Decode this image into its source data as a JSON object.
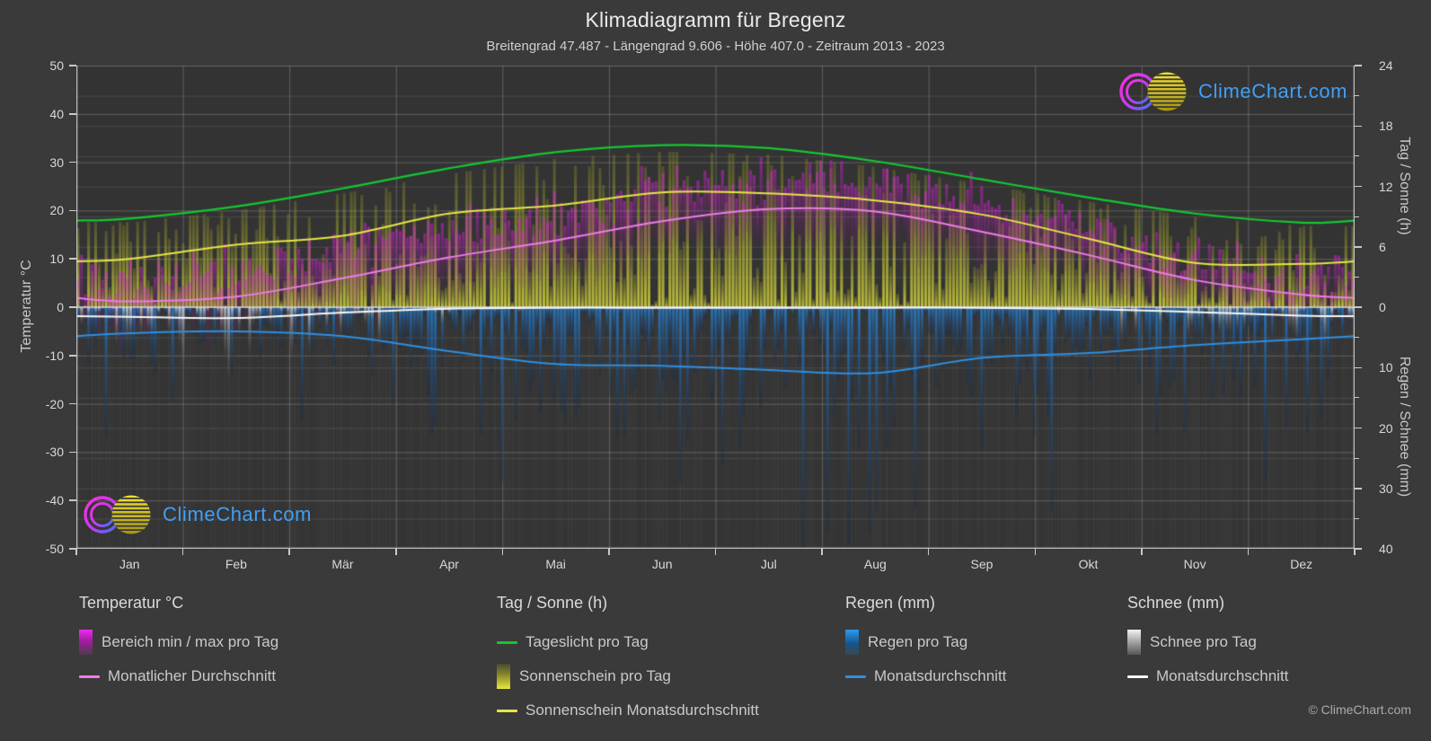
{
  "title": "Klimadiagramm für Bregenz",
  "subtitle": "Breitengrad 47.487 - Längengrad 9.606 - Höhe 407.0 - Zeitraum 2013 - 2023",
  "watermark_text": "ClimeChart.com",
  "copyright": "© ClimeChart.com",
  "axes": {
    "temp": {
      "title": "Temperatur °C",
      "ticks": [
        50,
        40,
        30,
        20,
        10,
        0,
        -10,
        -20,
        -30,
        -40,
        -50
      ],
      "range": [
        -50,
        50
      ]
    },
    "sun": {
      "title": "Tag / Sonne (h)",
      "ticks": [
        24,
        18,
        12,
        6,
        0
      ],
      "minor_ticks": [
        21,
        15,
        9,
        3
      ],
      "range": [
        0,
        24
      ]
    },
    "precip": {
      "title": "Regen / Schnee (mm)",
      "ticks": [
        10,
        20,
        30,
        40
      ],
      "minor_ticks": [
        5,
        15,
        25,
        35
      ],
      "range": [
        0,
        40
      ]
    }
  },
  "legend": {
    "groups": [
      {
        "title": "Temperatur °C",
        "items": [
          {
            "label": "Bereich min / max pro Tag",
            "swatch": "bar-magenta"
          },
          {
            "label": "Monatlicher Durchschnitt",
            "swatch": "line-pink"
          }
        ]
      },
      {
        "title": "Tag / Sonne (h)",
        "items": [
          {
            "label": "Tageslicht pro Tag",
            "swatch": "line-green"
          },
          {
            "label": "Sonnenschein pro Tag",
            "swatch": "bar-yellow"
          },
          {
            "label": "Sonnenschein Monatsdurchschnitt",
            "swatch": "line-yellow"
          }
        ]
      },
      {
        "title": "Regen (mm)",
        "items": [
          {
            "label": "Regen pro Tag",
            "swatch": "bar-blue"
          },
          {
            "label": "Monatsdurchschnitt",
            "swatch": "line-blue"
          }
        ]
      },
      {
        "title": "Schnee (mm)",
        "items": [
          {
            "label": "Schnee pro Tag",
            "swatch": "bar-white"
          },
          {
            "label": "Monatsdurchschnitt",
            "swatch": "line-white"
          }
        ]
      }
    ]
  },
  "chart_data": {
    "type": "bar",
    "subtype": "climate diagram: daily bars + monthly average lines",
    "location": "Bregenz",
    "categories": [
      "Jan",
      "Feb",
      "Mär",
      "Apr",
      "Mai",
      "Jun",
      "Jul",
      "Aug",
      "Sep",
      "Okt",
      "Nov",
      "Dez"
    ],
    "series": [
      {
        "key": "daylight",
        "name": "Tageslicht pro Tag",
        "unit": "h",
        "values": [
          8.8,
          10.0,
          11.8,
          13.8,
          15.4,
          16.1,
          15.8,
          14.5,
          12.7,
          10.9,
          9.3,
          8.4
        ]
      },
      {
        "key": "sunshine",
        "name": "Sonnenschein Monatsdurchschnitt",
        "unit": "h",
        "values": [
          4.8,
          6.2,
          7.1,
          9.3,
          10.1,
          11.4,
          11.3,
          10.6,
          9.2,
          6.8,
          4.4,
          4.3
        ]
      },
      {
        "key": "temp_avg",
        "name": "Temperatur Monatlicher Durchschnitt",
        "unit": "°C",
        "values": [
          1.2,
          2.2,
          6.0,
          10.3,
          13.8,
          17.8,
          20.3,
          19.8,
          15.6,
          10.8,
          5.6,
          2.6
        ]
      },
      {
        "key": "temp_min",
        "name": "Temperatur min pro Tag (Monatsmittel)",
        "unit": "°C",
        "values": [
          -2.5,
          -2.2,
          1.0,
          4.6,
          8.6,
          12.4,
          14.8,
          14.6,
          11.2,
          7.0,
          2.0,
          -0.8
        ]
      },
      {
        "key": "temp_max",
        "name": "Temperatur max pro Tag (Monatsmittel)",
        "unit": "°C",
        "values": [
          5.2,
          6.8,
          11.2,
          15.8,
          19.2,
          23.2,
          25.8,
          25.2,
          20.6,
          15.2,
          9.4,
          6.2
        ]
      },
      {
        "key": "rain",
        "name": "Regen Monatsdurchschnitt",
        "unit": "mm",
        "values": [
          4.3,
          4.0,
          4.8,
          7.3,
          9.4,
          9.7,
          10.4,
          10.9,
          8.4,
          7.6,
          6.3,
          5.3
        ]
      },
      {
        "key": "snow",
        "name": "Schnee Monatsdurchschnitt",
        "unit": "mm",
        "values": [
          1.6,
          1.8,
          0.9,
          0.25,
          0.1,
          0.1,
          0.1,
          0.1,
          0.1,
          0.3,
          0.8,
          1.4
        ]
      }
    ],
    "ylim_temp": [
      -50,
      50
    ],
    "ylim_sun": [
      0,
      24
    ],
    "ylim_precip": [
      0,
      40
    ],
    "grid": true,
    "legend_position": "bottom",
    "colors": {
      "daylight_line": "#13c831",
      "sunshine_line": "#e6e648",
      "temp_line": "#ef7bea",
      "rain_line": "#2f8fe0",
      "snow_line": "#f8f8f8",
      "sunshine_bar": "#d2d23c",
      "temp_bar": "#e220e2",
      "rain_bar": "#2684d7",
      "snow_bar": "#e6e6e6",
      "zero_line": "#d7d7d7",
      "plot_bg": "#333333",
      "page_bg": "#3a3a3a",
      "logo_text": "#3fa0f5"
    }
  }
}
